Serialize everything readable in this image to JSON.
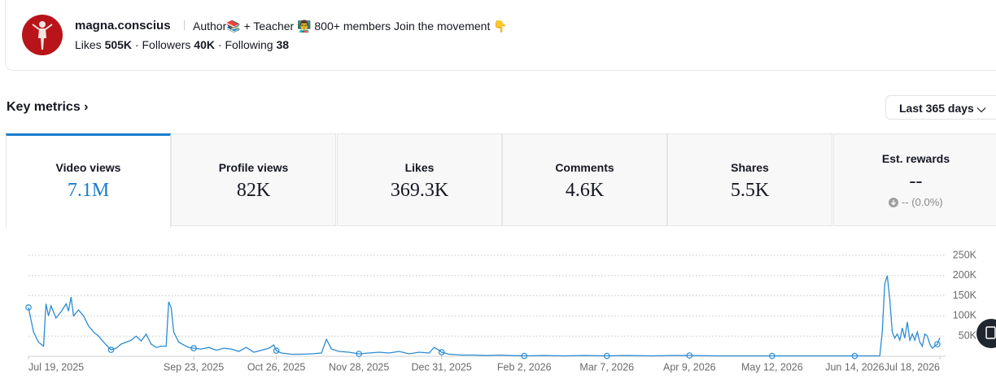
{
  "profile": {
    "username": "magna.conscius",
    "bio": "Author📚 + Teacher 👨‍🏫 800+ members Join the movement 👇",
    "stats": [
      {
        "label": "Likes",
        "value": "505K"
      },
      {
        "label": "Followers",
        "value": "40K"
      },
      {
        "label": "Following",
        "value": "38"
      }
    ]
  },
  "section_title": "Key metrics ›",
  "range_selector": "Last 365 days ⌵",
  "metrics": [
    {
      "label": "Video views",
      "value": "7.1M"
    },
    {
      "label": "Profile views",
      "value": "82K"
    },
    {
      "label": "Likes",
      "value": "369.3K"
    },
    {
      "label": "Comments",
      "value": "4.6K"
    },
    {
      "label": "Shares",
      "value": "5.5K"
    },
    {
      "label": "Est. rewards",
      "value": "--",
      "change": "-- (0.0%)"
    }
  ],
  "chart_data": {
    "type": "line",
    "color": "#2a8bd4",
    "x": [
      "Jul 19, 2025",
      "Jul 21, 2025",
      "Jul 23, 2025",
      "Jul 25, 2025",
      "Jul 26, 2025",
      "Jul 27, 2025",
      "Jul 28, 2025",
      "Jul 30, 2025",
      "Aug 1, 2025",
      "Aug 3, 2025",
      "Aug 4, 2025",
      "Aug 5, 2025",
      "Aug 6, 2025",
      "Aug 8, 2025",
      "Aug 10, 2025",
      "Aug 12, 2025",
      "Aug 14, 2025",
      "Aug 16, 2025",
      "Aug 18, 2025",
      "Aug 20, 2025",
      "Aug 21, 2025",
      "Aug 23, 2025",
      "Aug 25, 2025",
      "Aug 27, 2025",
      "Aug 29, 2025",
      "Aug 31, 2025",
      "Sep 2, 2025",
      "Sep 4, 2025",
      "Sep 6, 2025",
      "Sep 8, 2025",
      "Sep 10, 2025",
      "Sep 12, 2025",
      "Sep 13, 2025",
      "Sep 14, 2025",
      "Sep 15, 2025",
      "Sep 17, 2025",
      "Sep 19, 2025",
      "Sep 21, 2025",
      "Sep 23, 2025",
      "Sep 26, 2025",
      "Sep 29, 2025",
      "Oct 2, 2025",
      "Oct 5, 2025",
      "Oct 8, 2025",
      "Oct 11, 2025",
      "Oct 14, 2025",
      "Oct 17, 2025",
      "Oct 20, 2025",
      "Oct 23, 2025",
      "Oct 25, 2025",
      "Oct 26, 2025",
      "Oct 28, 2025",
      "Nov 1, 2025",
      "Nov 5, 2025",
      "Nov 9, 2025",
      "Nov 13, 2025",
      "Nov 15, 2025",
      "Nov 17, 2025",
      "Nov 20, 2025",
      "Nov 24, 2025",
      "Nov 28, 2025",
      "Dec 2, 2025",
      "Dec 6, 2025",
      "Dec 10, 2025",
      "Dec 14, 2025",
      "Dec 18, 2025",
      "Dec 22, 2025",
      "Dec 26, 2025",
      "Dec 28, 2025",
      "Dec 30, 2025",
      "Dec 31, 2025",
      "Jan 3, 2026",
      "Jan 8, 2026",
      "Jan 13, 2026",
      "Jan 18, 2026",
      "Jan 23, 2026",
      "Jan 28, 2026",
      "Feb 2, 2026",
      "Feb 10, 2026",
      "Feb 18, 2026",
      "Feb 26, 2026",
      "Mar 7, 2026",
      "Mar 15, 2026",
      "Mar 25, 2026",
      "Apr 2, 2026",
      "Apr 9, 2026",
      "Apr 20, 2026",
      "May 1, 2026",
      "May 12, 2026",
      "May 22, 2026",
      "Jun 1, 2026",
      "Jun 14, 2026",
      "Jun 24, 2026",
      "Jun 25, 2026",
      "Jun 26, 2026",
      "Jun 27, 2026",
      "Jun 28, 2026",
      "Jun 29, 2026",
      "Jun 30, 2026",
      "Jul 1, 2026",
      "Jul 2, 2026",
      "Jul 3, 2026",
      "Jul 4, 2026",
      "Jul 5, 2026",
      "Jul 6, 2026",
      "Jul 7, 2026",
      "Jul 8, 2026",
      "Jul 9, 2026",
      "Jul 10, 2026",
      "Jul 11, 2026",
      "Jul 12, 2026",
      "Jul 13, 2026",
      "Jul 14, 2026",
      "Jul 15, 2026",
      "Jul 16, 2026",
      "Jul 17, 2026",
      "Jul 18, 2026"
    ],
    "values": [
      121000,
      60000,
      35000,
      25000,
      130000,
      100000,
      125000,
      95000,
      110000,
      130000,
      112000,
      147000,
      100000,
      115000,
      100000,
      75000,
      60000,
      50000,
      35000,
      22000,
      16000,
      20000,
      30000,
      35000,
      40000,
      50000,
      38000,
      55000,
      30000,
      22000,
      25000,
      25000,
      135000,
      120000,
      60000,
      35000,
      28000,
      22000,
      20000,
      18000,
      22000,
      15000,
      20000,
      18000,
      12000,
      22000,
      10000,
      15000,
      20000,
      28000,
      14000,
      8000,
      5000,
      5000,
      6000,
      8000,
      42000,
      18000,
      12000,
      10000,
      6000,
      8000,
      10000,
      8000,
      12000,
      6000,
      10000,
      8000,
      22000,
      15000,
      10000,
      5000,
      3000,
      3000,
      2000,
      3000,
      2000,
      1000,
      2000,
      1000,
      2000,
      1000,
      2000,
      1000,
      2000,
      2000,
      1000,
      1000,
      1000,
      1000,
      1000,
      1000,
      1000,
      60000,
      180000,
      200000,
      140000,
      60000,
      45000,
      55000,
      40000,
      70000,
      45000,
      85000,
      40000,
      55000,
      40000,
      60000,
      35000,
      25000,
      55000,
      50000,
      30000,
      20000,
      25000,
      30000,
      46000
    ],
    "xticks": [
      "Jul 19, 2025",
      "Sep 23, 2025",
      "Oct 26, 2025",
      "Nov 28, 2025",
      "Dec 31, 2025",
      "Feb 2, 2026",
      "Mar 7, 2026",
      "Apr 9, 2026",
      "May 12, 2026",
      "Jun 14, 2026",
      "Jul 18, 2026"
    ],
    "ylim": [
      0,
      250000
    ],
    "yticks": [
      {
        "value": 50000,
        "label": "50K"
      },
      {
        "value": 100000,
        "label": "100K"
      },
      {
        "value": 150000,
        "label": "150K"
      },
      {
        "value": 200000,
        "label": "200K"
      },
      {
        "value": 250000,
        "label": "250K"
      }
    ],
    "grid": true
  }
}
